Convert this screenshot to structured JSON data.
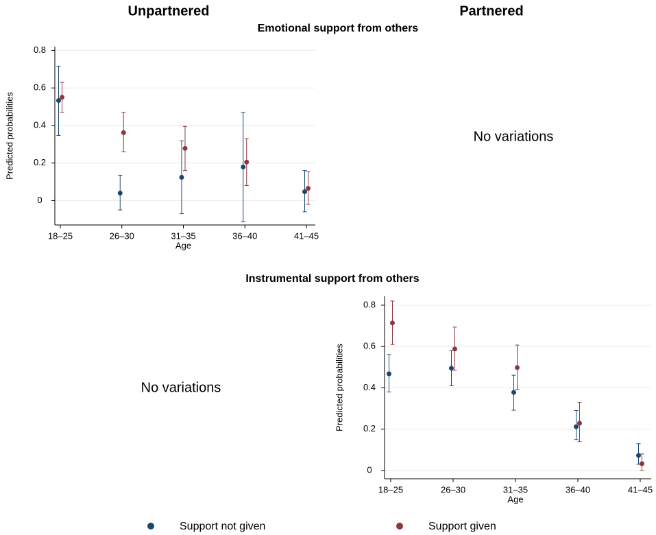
{
  "column_headers": [
    "Unpartnered",
    "Partnered"
  ],
  "chart_data": [
    {
      "type": "errorbar",
      "title": "Emotional support from others",
      "empty_panel_note": "No variations",
      "x_label": "Age",
      "y_label": "Predicted probabilities",
      "categories": [
        "18–25",
        "26–30",
        "31–35",
        "36–40",
        "41–45"
      ],
      "ylim": [
        -0.13,
        0.82
      ],
      "yticks": [
        0,
        0.2,
        0.4,
        0.6,
        0.8
      ],
      "grid": true,
      "series": [
        {
          "name": "Support not given",
          "color": "#1a476f",
          "values": [
            0.533,
            0.04,
            0.124,
            0.179,
            0.047
          ],
          "lower": [
            0.347,
            -0.05,
            -0.07,
            -0.113,
            -0.06
          ],
          "upper": [
            0.716,
            0.135,
            0.318,
            0.47,
            0.16
          ]
        },
        {
          "name": "Support given",
          "color": "#90353b",
          "values": [
            0.55,
            0.362,
            0.278,
            0.205,
            0.065
          ],
          "lower": [
            0.47,
            0.26,
            0.16,
            0.08,
            -0.02
          ],
          "upper": [
            0.63,
            0.47,
            0.395,
            0.33,
            0.153
          ]
        }
      ]
    },
    {
      "type": "errorbar",
      "title": "Instrumental support from others",
      "empty_panel_note": "No variations",
      "x_label": "Age",
      "y_label": "Predicted probabilities",
      "categories": [
        "18–25",
        "26–30",
        "31–35",
        "36–40",
        "41–45"
      ],
      "ylim": [
        -0.04,
        0.843
      ],
      "yticks": [
        0,
        0.2,
        0.4,
        0.6,
        0.8
      ],
      "grid": true,
      "series": [
        {
          "name": "Support not given",
          "color": "#1a476f",
          "values": [
            0.468,
            0.495,
            0.378,
            0.212,
            0.073
          ],
          "lower": [
            0.38,
            0.41,
            0.292,
            0.15,
            0.03
          ],
          "upper": [
            0.561,
            0.58,
            0.461,
            0.29,
            0.13
          ]
        },
        {
          "name": "Support given",
          "color": "#90353b",
          "values": [
            0.714,
            0.588,
            0.498,
            0.229,
            0.033
          ],
          "lower": [
            0.61,
            0.485,
            0.392,
            0.14,
            0.0
          ],
          "upper": [
            0.82,
            0.694,
            0.607,
            0.33,
            0.08
          ]
        }
      ]
    }
  ]
}
